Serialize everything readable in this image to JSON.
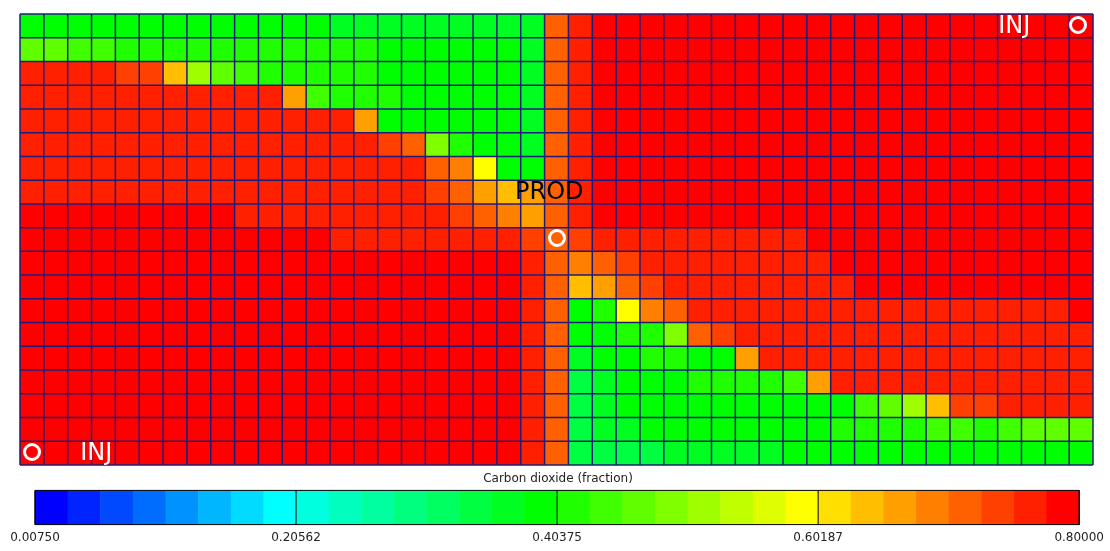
{
  "chart_data": {
    "type": "heatmap",
    "clabel": "Carbon dioxide (fraction)",
    "annotations": [
      "INJ",
      "PROD",
      "INJ"
    ],
    "categories": [
      null,
      null,
      null,
      null,
      null,
      null,
      null,
      null,
      null,
      null,
      null,
      null,
      null,
      null,
      null,
      null,
      null,
      null,
      null,
      null,
      null,
      null,
      null,
      null,
      null,
      null,
      null,
      null,
      null,
      null,
      null,
      null,
      null,
      null,
      null,
      null,
      null,
      null,
      null,
      null,
      null,
      null,
      null,
      null,
      null
    ],
    "y_categories": [
      null,
      null,
      null,
      null,
      null,
      null,
      null,
      null,
      null,
      null,
      null,
      null,
      null,
      null,
      null,
      null,
      null,
      null,
      null
    ],
    "clim": [
      0.0075,
      0.8
    ],
    "cticks": [
      {
        "value": 0.0075,
        "label": "0.00750"
      },
      0.20562,
      0.40375,
      0.60187,
      {
        "value": 0.8,
        "label": "0.80000"
      }
    ],
    "cells": [
      [
        0.39,
        0.39,
        0.39,
        0.39,
        0.39,
        0.39,
        0.39,
        0.39,
        0.39,
        0.39,
        0.39,
        0.39,
        0.39,
        0.37,
        0.37,
        0.37,
        0.36,
        0.37,
        0.37,
        0.36,
        0.36,
        0.36,
        0.71,
        0.77,
        0.79,
        0.79,
        0.79,
        0.79,
        0.79,
        0.79,
        0.79,
        0.79,
        0.79,
        0.79,
        0.79,
        0.79,
        0.79,
        0.79,
        0.79,
        0.79,
        0.79,
        0.79,
        0.79,
        0.79,
        0.79
      ],
      [
        0.46,
        0.46,
        0.44,
        0.44,
        0.42,
        0.42,
        0.42,
        0.42,
        0.42,
        0.42,
        0.42,
        0.42,
        0.42,
        0.42,
        0.42,
        0.39,
        0.39,
        0.39,
        0.39,
        0.39,
        0.39,
        0.36,
        0.71,
        0.77,
        0.79,
        0.79,
        0.79,
        0.79,
        0.79,
        0.79,
        0.79,
        0.79,
        0.79,
        0.79,
        0.79,
        0.79,
        0.79,
        0.79,
        0.79,
        0.79,
        0.79,
        0.79,
        0.79,
        0.79,
        0.79
      ],
      [
        0.77,
        0.77,
        0.77,
        0.77,
        0.73,
        0.73,
        0.64,
        0.52,
        0.46,
        0.44,
        0.42,
        0.42,
        0.42,
        0.42,
        0.42,
        0.39,
        0.39,
        0.39,
        0.39,
        0.39,
        0.39,
        0.36,
        0.71,
        0.77,
        0.79,
        0.79,
        0.79,
        0.79,
        0.79,
        0.79,
        0.79,
        0.79,
        0.79,
        0.79,
        0.79,
        0.79,
        0.79,
        0.79,
        0.79,
        0.79,
        0.79,
        0.79,
        0.79,
        0.79,
        0.79
      ],
      [
        0.77,
        0.77,
        0.77,
        0.77,
        0.77,
        0.77,
        0.77,
        0.77,
        0.77,
        0.77,
        0.77,
        0.66,
        0.44,
        0.42,
        0.42,
        0.42,
        0.39,
        0.39,
        0.39,
        0.39,
        0.39,
        0.36,
        0.71,
        0.77,
        0.79,
        0.79,
        0.79,
        0.79,
        0.79,
        0.79,
        0.79,
        0.79,
        0.79,
        0.79,
        0.79,
        0.79,
        0.79,
        0.79,
        0.79,
        0.79,
        0.79,
        0.79,
        0.79,
        0.79,
        0.79
      ],
      [
        0.77,
        0.77,
        0.77,
        0.77,
        0.77,
        0.77,
        0.77,
        0.77,
        0.77,
        0.77,
        0.77,
        0.77,
        0.77,
        0.77,
        0.66,
        0.39,
        0.39,
        0.39,
        0.39,
        0.39,
        0.39,
        0.37,
        0.71,
        0.77,
        0.79,
        0.79,
        0.79,
        0.79,
        0.79,
        0.79,
        0.79,
        0.79,
        0.79,
        0.79,
        0.79,
        0.79,
        0.79,
        0.79,
        0.79,
        0.79,
        0.79,
        0.79,
        0.79,
        0.79,
        0.79
      ],
      [
        0.77,
        0.77,
        0.77,
        0.77,
        0.77,
        0.77,
        0.77,
        0.77,
        0.77,
        0.77,
        0.77,
        0.77,
        0.77,
        0.77,
        0.77,
        0.73,
        0.71,
        0.49,
        0.42,
        0.39,
        0.39,
        0.37,
        0.71,
        0.77,
        0.79,
        0.79,
        0.79,
        0.79,
        0.79,
        0.79,
        0.79,
        0.79,
        0.79,
        0.79,
        0.79,
        0.79,
        0.79,
        0.79,
        0.79,
        0.79,
        0.79,
        0.79,
        0.79,
        0.79,
        0.79
      ],
      [
        0.77,
        0.77,
        0.77,
        0.77,
        0.77,
        0.77,
        0.77,
        0.77,
        0.77,
        0.77,
        0.77,
        0.77,
        0.77,
        0.77,
        0.77,
        0.77,
        0.77,
        0.71,
        0.68,
        0.59,
        0.39,
        0.39,
        0.71,
        0.77,
        0.79,
        0.79,
        0.79,
        0.79,
        0.79,
        0.79,
        0.79,
        0.79,
        0.79,
        0.79,
        0.79,
        0.79,
        0.79,
        0.79,
        0.79,
        0.79,
        0.79,
        0.79,
        0.79,
        0.79,
        0.79
      ],
      [
        0.77,
        0.77,
        0.77,
        0.77,
        0.77,
        0.77,
        0.77,
        0.77,
        0.77,
        0.77,
        0.77,
        0.77,
        0.77,
        0.77,
        0.77,
        0.77,
        0.77,
        0.73,
        0.71,
        0.66,
        0.64,
        0.66,
        0.71,
        0.77,
        0.79,
        0.79,
        0.79,
        0.79,
        0.79,
        0.79,
        0.79,
        0.79,
        0.79,
        0.79,
        0.79,
        0.79,
        0.79,
        0.79,
        0.79,
        0.79,
        0.79,
        0.79,
        0.79,
        0.79,
        0.79
      ],
      [
        0.79,
        0.79,
        0.79,
        0.79,
        0.79,
        0.79,
        0.79,
        0.79,
        0.79,
        0.77,
        0.77,
        0.77,
        0.77,
        0.77,
        0.77,
        0.77,
        0.77,
        0.77,
        0.73,
        0.71,
        0.68,
        0.66,
        0.71,
        0.77,
        0.79,
        0.79,
        0.79,
        0.79,
        0.79,
        0.79,
        0.79,
        0.79,
        0.79,
        0.79,
        0.79,
        0.79,
        0.79,
        0.79,
        0.79,
        0.79,
        0.79,
        0.79,
        0.79,
        0.79,
        0.79
      ],
      [
        0.79,
        0.79,
        0.79,
        0.79,
        0.79,
        0.79,
        0.79,
        0.79,
        0.79,
        0.79,
        0.79,
        0.79,
        0.79,
        0.77,
        0.77,
        0.77,
        0.77,
        0.77,
        0.77,
        0.77,
        0.77,
        0.73,
        0.71,
        0.73,
        0.77,
        0.77,
        0.77,
        0.77,
        0.77,
        0.77,
        0.77,
        0.77,
        0.77,
        0.79,
        0.79,
        0.79,
        0.79,
        0.79,
        0.79,
        0.79,
        0.79,
        0.79,
        0.79,
        0.79,
        0.79
      ],
      [
        0.79,
        0.79,
        0.79,
        0.79,
        0.79,
        0.79,
        0.79,
        0.79,
        0.79,
        0.79,
        0.79,
        0.79,
        0.79,
        0.79,
        0.79,
        0.79,
        0.79,
        0.79,
        0.79,
        0.79,
        0.79,
        0.77,
        0.71,
        0.68,
        0.71,
        0.73,
        0.77,
        0.77,
        0.77,
        0.77,
        0.77,
        0.77,
        0.77,
        0.77,
        0.79,
        0.79,
        0.79,
        0.79,
        0.79,
        0.79,
        0.79,
        0.79,
        0.79,
        0.79,
        0.79
      ],
      [
        0.79,
        0.79,
        0.79,
        0.79,
        0.79,
        0.79,
        0.79,
        0.79,
        0.79,
        0.79,
        0.79,
        0.79,
        0.79,
        0.79,
        0.79,
        0.79,
        0.79,
        0.79,
        0.79,
        0.79,
        0.79,
        0.77,
        0.71,
        0.64,
        0.66,
        0.71,
        0.73,
        0.77,
        0.77,
        0.77,
        0.77,
        0.77,
        0.77,
        0.77,
        0.77,
        0.79,
        0.79,
        0.79,
        0.79,
        0.79,
        0.79,
        0.79,
        0.79,
        0.79,
        0.79
      ],
      [
        0.79,
        0.79,
        0.79,
        0.79,
        0.79,
        0.79,
        0.79,
        0.79,
        0.79,
        0.79,
        0.79,
        0.79,
        0.79,
        0.79,
        0.79,
        0.79,
        0.79,
        0.79,
        0.79,
        0.79,
        0.79,
        0.77,
        0.71,
        0.39,
        0.42,
        0.59,
        0.68,
        0.71,
        0.77,
        0.77,
        0.77,
        0.77,
        0.77,
        0.77,
        0.77,
        0.77,
        0.77,
        0.77,
        0.77,
        0.77,
        0.77,
        0.77,
        0.77,
        0.77,
        0.79
      ],
      [
        0.79,
        0.79,
        0.79,
        0.79,
        0.79,
        0.79,
        0.79,
        0.79,
        0.79,
        0.79,
        0.79,
        0.79,
        0.79,
        0.79,
        0.79,
        0.79,
        0.79,
        0.79,
        0.79,
        0.79,
        0.79,
        0.77,
        0.71,
        0.39,
        0.39,
        0.42,
        0.42,
        0.49,
        0.71,
        0.73,
        0.77,
        0.77,
        0.77,
        0.77,
        0.77,
        0.77,
        0.77,
        0.77,
        0.77,
        0.77,
        0.77,
        0.77,
        0.77,
        0.77,
        0.77
      ],
      [
        0.79,
        0.79,
        0.79,
        0.79,
        0.79,
        0.79,
        0.79,
        0.79,
        0.79,
        0.79,
        0.79,
        0.79,
        0.79,
        0.79,
        0.79,
        0.79,
        0.79,
        0.79,
        0.79,
        0.79,
        0.79,
        0.77,
        0.71,
        0.37,
        0.39,
        0.39,
        0.42,
        0.42,
        0.39,
        0.39,
        0.66,
        0.77,
        0.77,
        0.77,
        0.77,
        0.77,
        0.77,
        0.77,
        0.77,
        0.77,
        0.77,
        0.77,
        0.77,
        0.77,
        0.77
      ],
      [
        0.79,
        0.79,
        0.79,
        0.79,
        0.79,
        0.79,
        0.79,
        0.79,
        0.79,
        0.79,
        0.79,
        0.79,
        0.79,
        0.79,
        0.79,
        0.79,
        0.79,
        0.79,
        0.79,
        0.79,
        0.79,
        0.77,
        0.71,
        0.34,
        0.37,
        0.39,
        0.39,
        0.39,
        0.42,
        0.42,
        0.42,
        0.42,
        0.44,
        0.66,
        0.77,
        0.77,
        0.77,
        0.77,
        0.77,
        0.77,
        0.77,
        0.77,
        0.77,
        0.77,
        0.77
      ],
      [
        0.79,
        0.79,
        0.79,
        0.79,
        0.79,
        0.79,
        0.79,
        0.79,
        0.79,
        0.79,
        0.79,
        0.79,
        0.79,
        0.79,
        0.79,
        0.79,
        0.79,
        0.79,
        0.79,
        0.79,
        0.79,
        0.77,
        0.71,
        0.34,
        0.37,
        0.39,
        0.39,
        0.39,
        0.39,
        0.39,
        0.39,
        0.39,
        0.39,
        0.39,
        0.39,
        0.44,
        0.46,
        0.52,
        0.64,
        0.73,
        0.73,
        0.77,
        0.77,
        0.77,
        0.77
      ],
      [
        0.79,
        0.79,
        0.79,
        0.79,
        0.79,
        0.79,
        0.79,
        0.79,
        0.79,
        0.79,
        0.79,
        0.79,
        0.79,
        0.79,
        0.79,
        0.79,
        0.79,
        0.79,
        0.79,
        0.79,
        0.79,
        0.77,
        0.71,
        0.34,
        0.37,
        0.37,
        0.39,
        0.39,
        0.39,
        0.39,
        0.39,
        0.39,
        0.39,
        0.39,
        0.42,
        0.42,
        0.42,
        0.42,
        0.44,
        0.44,
        0.42,
        0.44,
        0.46,
        0.46,
        0.46
      ],
      [
        0.79,
        0.79,
        0.79,
        0.79,
        0.79,
        0.79,
        0.79,
        0.79,
        0.79,
        0.79,
        0.79,
        0.79,
        0.79,
        0.79,
        0.79,
        0.79,
        0.79,
        0.79,
        0.79,
        0.79,
        0.79,
        0.77,
        0.71,
        0.34,
        0.34,
        0.34,
        0.34,
        0.37,
        0.37,
        0.37,
        0.37,
        0.37,
        0.39,
        0.39,
        0.39,
        0.39,
        0.39,
        0.39,
        0.39,
        0.39,
        0.39,
        0.39,
        0.39,
        0.39,
        0.39
      ]
    ]
  }
}
